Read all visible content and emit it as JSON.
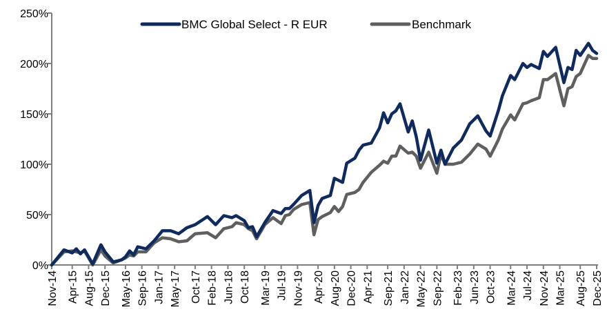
{
  "chart_data": {
    "type": "line",
    "title": "",
    "xlabel": "",
    "ylabel": "",
    "ylim": [
      0,
      250
    ],
    "y_ticks": [
      0,
      50,
      100,
      150,
      200,
      250
    ],
    "y_tick_labels": [
      "0%",
      "50%",
      "100%",
      "150%",
      "200%",
      "250%"
    ],
    "x_range": [
      "2014-11",
      "2025-12"
    ],
    "x_tick_labels": [
      "Nov-14",
      "Apr-15",
      "Aug-15",
      "Dec-15",
      "May-16",
      "Sep-16",
      "Jan-17",
      "May-17",
      "Oct-17",
      "Feb-18",
      "Jun-18",
      "Oct-18",
      "Mar-19",
      "Jul-19",
      "Nov-19",
      "Apr-20",
      "Aug-20",
      "Dec-20",
      "Apr-21",
      "Sep-21",
      "Jan-22",
      "May-22",
      "Sep-22",
      "Feb-23",
      "Jun-23",
      "Oct-23",
      "Mar-24",
      "Jul-24",
      "Nov-24",
      "Mar-25",
      "Aug-25",
      "Dec-25"
    ],
    "grid": false,
    "legend_placement": "top-center",
    "x": [
      "2014-11",
      "2015-02",
      "2015-04",
      "2015-05",
      "2015-06",
      "2015-07",
      "2015-09",
      "2015-11",
      "2015-12",
      "2016-02",
      "2016-04",
      "2016-05",
      "2016-06",
      "2016-07",
      "2016-08",
      "2016-10",
      "2016-12",
      "2017-02",
      "2017-04",
      "2017-06",
      "2017-08",
      "2017-10",
      "2018-01",
      "2018-03",
      "2018-05",
      "2018-07",
      "2018-08",
      "2018-10",
      "2018-11",
      "2018-12",
      "2019-01",
      "2019-03",
      "2019-05",
      "2019-07",
      "2019-08",
      "2019-09",
      "2019-10",
      "2019-12",
      "2020-02",
      "2020-03",
      "2020-04",
      "2020-05",
      "2020-07",
      "2020-08",
      "2020-09",
      "2020-10",
      "2020-11",
      "2021-01",
      "2021-02",
      "2021-03",
      "2021-05",
      "2021-07",
      "2021-08",
      "2021-09",
      "2021-10",
      "2021-11",
      "2021-12",
      "2022-02",
      "2022-03",
      "2022-04",
      "2022-05",
      "2022-07",
      "2022-09",
      "2022-10",
      "2022-11",
      "2023-01",
      "2023-03",
      "2023-05",
      "2023-07",
      "2023-09",
      "2023-10",
      "2023-12",
      "2024-01",
      "2024-03",
      "2024-04",
      "2024-06",
      "2024-07",
      "2024-08",
      "2024-10",
      "2024-11",
      "2024-12",
      "2025-02",
      "2025-04",
      "2025-05",
      "2025-06",
      "2025-07",
      "2025-08",
      "2025-10",
      "2025-11",
      "2025-12"
    ],
    "series": [
      {
        "name": "BMC Global Select - R EUR",
        "color": "#0e2a5f",
        "values": [
          0,
          15,
          12,
          16,
          11,
          15,
          1,
          20,
          13,
          3,
          5,
          8,
          14,
          10,
          18,
          16,
          24,
          34,
          34,
          31,
          37,
          40,
          48,
          40,
          49,
          47,
          49,
          44,
          37,
          38,
          28,
          42,
          54,
          51,
          56,
          56,
          60,
          69,
          74,
          42,
          59,
          66,
          69,
          86,
          84,
          82,
          101,
          106,
          114,
          119,
          121,
          136,
          151,
          141,
          150,
          153,
          160,
          132,
          143,
          127,
          104,
          134,
          101,
          114,
          100,
          116,
          124,
          140,
          148,
          133,
          128,
          153,
          168,
          188,
          184,
          200,
          196,
          199,
          195,
          212,
          207,
          216,
          181,
          196,
          194,
          213,
          208,
          220,
          213,
          210
        ]
      },
      {
        "name": "Benchmark",
        "color": "#5f5f5d",
        "values": [
          0,
          13,
          14,
          13,
          12,
          14,
          0,
          15,
          9,
          2,
          5,
          7,
          10,
          9,
          13,
          13,
          22,
          27,
          26,
          23,
          24,
          31,
          32,
          27,
          36,
          38,
          42,
          40,
          36,
          34,
          26,
          40,
          47,
          41,
          49,
          50,
          55,
          60,
          62,
          30,
          45,
          48,
          52,
          58,
          53,
          58,
          70,
          72,
          75,
          82,
          92,
          99,
          103,
          101,
          108,
          108,
          118,
          111,
          112,
          108,
          96,
          112,
          91,
          110,
          100,
          100,
          102,
          110,
          120,
          115,
          108,
          124,
          135,
          149,
          144,
          160,
          161,
          163,
          166,
          184,
          184,
          190,
          158,
          175,
          177,
          187,
          190,
          208,
          205,
          205
        ]
      }
    ]
  }
}
